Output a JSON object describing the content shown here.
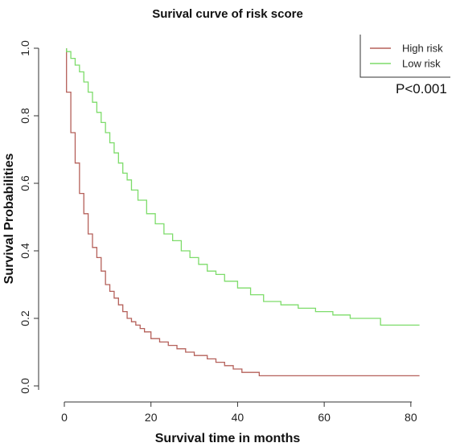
{
  "chart_data": {
    "type": "line",
    "step": true,
    "title": "Surival curve of risk score",
    "xlabel": "Survival time in months",
    "ylabel": "Survival Probabilities",
    "xlim": [
      0,
      83
    ],
    "ylim": [
      0,
      1.0
    ],
    "xticks": [
      0,
      20,
      40,
      60,
      80
    ],
    "yticks": [
      0.0,
      0.2,
      0.4,
      0.6,
      0.8,
      1.0
    ],
    "xtick_labels": [
      "0",
      "20",
      "40",
      "60",
      "80"
    ],
    "ytick_labels": [
      "0.0",
      "0.2",
      "0.4",
      "0.6",
      "0.8",
      "1.0"
    ],
    "grid": false,
    "legend_position": "top-right",
    "annotation": "P<0.001",
    "series": [
      {
        "name": "High risk",
        "color": "#b5605a",
        "x": [
          0.5,
          1.5,
          2.5,
          3.5,
          4.5,
          5.5,
          6.5,
          7.5,
          8.5,
          9.5,
          10.5,
          11.5,
          12.5,
          13.5,
          14.5,
          15.5,
          16.5,
          17.5,
          18.5,
          20,
          22,
          24,
          26,
          28,
          30,
          33,
          35,
          37,
          39,
          41,
          45,
          82
        ],
        "y": [
          0.87,
          0.75,
          0.66,
          0.57,
          0.51,
          0.45,
          0.41,
          0.38,
          0.34,
          0.3,
          0.28,
          0.26,
          0.24,
          0.22,
          0.2,
          0.19,
          0.18,
          0.17,
          0.16,
          0.14,
          0.13,
          0.12,
          0.11,
          0.1,
          0.09,
          0.08,
          0.07,
          0.06,
          0.05,
          0.04,
          0.03,
          0.03
        ]
      },
      {
        "name": "Low risk",
        "color": "#7ddc6a",
        "x": [
          0.5,
          1.5,
          2.5,
          3.5,
          4.5,
          5.5,
          6.5,
          7.5,
          8.5,
          9.5,
          10.5,
          11.5,
          12.5,
          13.5,
          14.5,
          15.5,
          17,
          19,
          21,
          23,
          25,
          27,
          29,
          31,
          33,
          35,
          37,
          40,
          43,
          46,
          50,
          54,
          58,
          62,
          66,
          70,
          73,
          82
        ],
        "y": [
          0.99,
          0.97,
          0.95,
          0.93,
          0.9,
          0.87,
          0.84,
          0.81,
          0.78,
          0.75,
          0.72,
          0.69,
          0.66,
          0.63,
          0.61,
          0.58,
          0.55,
          0.51,
          0.48,
          0.45,
          0.43,
          0.4,
          0.38,
          0.36,
          0.34,
          0.33,
          0.31,
          0.29,
          0.27,
          0.25,
          0.24,
          0.23,
          0.22,
          0.21,
          0.2,
          0.2,
          0.18,
          0.18
        ]
      }
    ]
  }
}
